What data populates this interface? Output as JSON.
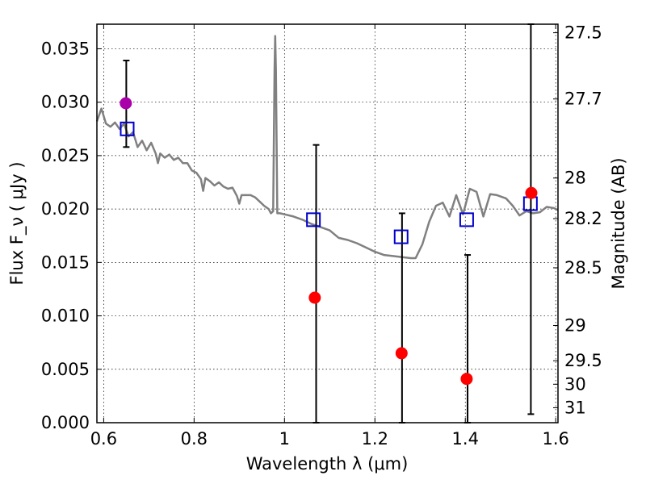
{
  "chart_data": {
    "type": "scatter",
    "xlabel": "Wavelength  λ (μm)",
    "ylabel": "Flux  F_ν  ( μJy )",
    "ylabel_right": "Magnitude (AB)",
    "xlim": [
      0.585,
      1.605
    ],
    "ylim": [
      0.0,
      0.0373
    ],
    "grid": true,
    "x_ticks": [
      0.6,
      0.8,
      1.0,
      1.2,
      1.4,
      1.6
    ],
    "x_tick_labels": [
      "0.6",
      "0.8",
      "1",
      "1.2",
      "1.4",
      "1.6"
    ],
    "y_ticks": [
      0.0,
      0.005,
      0.01,
      0.015,
      0.02,
      0.025,
      0.03,
      0.035
    ],
    "y_tick_labels": [
      "0.000",
      "0.005",
      "0.010",
      "0.015",
      "0.020",
      "0.025",
      "0.030",
      "0.035"
    ],
    "right_ticks": [
      {
        "label": "27.5",
        "flux": 0.0365
      },
      {
        "label": "27.7",
        "flux": 0.0303
      },
      {
        "label": "28",
        "flux": 0.0229
      },
      {
        "label": "28.2",
        "flux": 0.0191
      },
      {
        "label": "28.5",
        "flux": 0.0145
      },
      {
        "label": "29",
        "flux": 0.0091
      },
      {
        "label": "29.5",
        "flux": 0.0058
      },
      {
        "label": "30",
        "flux": 0.0036
      },
      {
        "label": "31",
        "flux": 0.0014
      }
    ],
    "series": [
      {
        "kind": "line",
        "color": "#808080",
        "points": [
          [
            0.585,
            0.0282
          ],
          [
            0.595,
            0.0294
          ],
          [
            0.605,
            0.028
          ],
          [
            0.615,
            0.0277
          ],
          [
            0.625,
            0.0281
          ],
          [
            0.635,
            0.0275
          ],
          [
            0.645,
            0.028
          ],
          [
            0.655,
            0.0268
          ],
          [
            0.665,
            0.0272
          ],
          [
            0.675,
            0.0258
          ],
          [
            0.685,
            0.0264
          ],
          [
            0.695,
            0.0255
          ],
          [
            0.705,
            0.0262
          ],
          [
            0.715,
            0.0252
          ],
          [
            0.72,
            0.0243
          ],
          [
            0.725,
            0.0252
          ],
          [
            0.735,
            0.0248
          ],
          [
            0.745,
            0.0251
          ],
          [
            0.755,
            0.0246
          ],
          [
            0.765,
            0.0248
          ],
          [
            0.775,
            0.0243
          ],
          [
            0.785,
            0.0243
          ],
          [
            0.795,
            0.0236
          ],
          [
            0.805,
            0.0234
          ],
          [
            0.815,
            0.0228
          ],
          [
            0.82,
            0.0217
          ],
          [
            0.825,
            0.0229
          ],
          [
            0.835,
            0.0226
          ],
          [
            0.845,
            0.0222
          ],
          [
            0.855,
            0.0225
          ],
          [
            0.865,
            0.0221
          ],
          [
            0.875,
            0.0219
          ],
          [
            0.885,
            0.022
          ],
          [
            0.895,
            0.0212
          ],
          [
            0.9,
            0.0205
          ],
          [
            0.905,
            0.0213
          ],
          [
            0.915,
            0.0213
          ],
          [
            0.925,
            0.0213
          ],
          [
            0.935,
            0.0211
          ],
          [
            0.945,
            0.0207
          ],
          [
            0.955,
            0.0203
          ],
          [
            0.965,
            0.02
          ],
          [
            0.97,
            0.0196
          ],
          [
            0.975,
            0.0198
          ],
          [
            0.978,
            0.033
          ],
          [
            0.9795,
            0.0362
          ],
          [
            0.981,
            0.033
          ],
          [
            0.984,
            0.0196
          ],
          [
            0.99,
            0.0196
          ],
          [
            1.0,
            0.0195
          ],
          [
            1.02,
            0.0193
          ],
          [
            1.04,
            0.019
          ],
          [
            1.06,
            0.0186
          ],
          [
            1.08,
            0.0183
          ],
          [
            1.1,
            0.018
          ],
          [
            1.12,
            0.0173
          ],
          [
            1.14,
            0.0171
          ],
          [
            1.16,
            0.0168
          ],
          [
            1.18,
            0.0164
          ],
          [
            1.2,
            0.016
          ],
          [
            1.22,
            0.0157
          ],
          [
            1.24,
            0.0156
          ],
          [
            1.26,
            0.0155
          ],
          [
            1.28,
            0.0154
          ],
          [
            1.29,
            0.0154
          ],
          [
            1.305,
            0.0167
          ],
          [
            1.32,
            0.0188
          ],
          [
            1.335,
            0.0203
          ],
          [
            1.35,
            0.0206
          ],
          [
            1.365,
            0.0193
          ],
          [
            1.38,
            0.0213
          ],
          [
            1.395,
            0.0195
          ],
          [
            1.41,
            0.0219
          ],
          [
            1.425,
            0.0216
          ],
          [
            1.44,
            0.0193
          ],
          [
            1.455,
            0.0214
          ],
          [
            1.47,
            0.0213
          ],
          [
            1.49,
            0.021
          ],
          [
            1.505,
            0.0203
          ],
          [
            1.52,
            0.0194
          ],
          [
            1.535,
            0.0198
          ],
          [
            1.55,
            0.0196
          ],
          [
            1.565,
            0.0197
          ],
          [
            1.58,
            0.0202
          ],
          [
            1.595,
            0.0201
          ],
          [
            1.605,
            0.0199
          ]
        ]
      },
      {
        "kind": "errorbar",
        "color": "#000000",
        "points": [
          {
            "x": 0.65,
            "low": 0.0258,
            "high": 0.0339
          },
          {
            "x": 1.07,
            "low": 0.0,
            "high": 0.026
          },
          {
            "x": 1.26,
            "low": 0.0,
            "high": 0.0196
          },
          {
            "x": 1.405,
            "low": 0.0,
            "high": 0.0157
          },
          {
            "x": 1.545,
            "low": 0.0008,
            "high": 0.0373
          }
        ]
      },
      {
        "kind": "square",
        "color": "#0000cc",
        "points": [
          [
            0.652,
            0.0275
          ],
          [
            1.064,
            0.019
          ],
          [
            1.258,
            0.0174
          ],
          [
            1.403,
            0.019
          ],
          [
            1.544,
            0.0205
          ]
        ]
      },
      {
        "kind": "circle",
        "color": "#ff0000",
        "points": [
          [
            1.067,
            0.0117
          ],
          [
            1.259,
            0.0065
          ],
          [
            1.403,
            0.0041
          ],
          [
            1.546,
            0.0215
          ]
        ]
      },
      {
        "kind": "circle",
        "color": "#aa00aa",
        "points": [
          [
            0.649,
            0.0299
          ]
        ]
      }
    ]
  }
}
